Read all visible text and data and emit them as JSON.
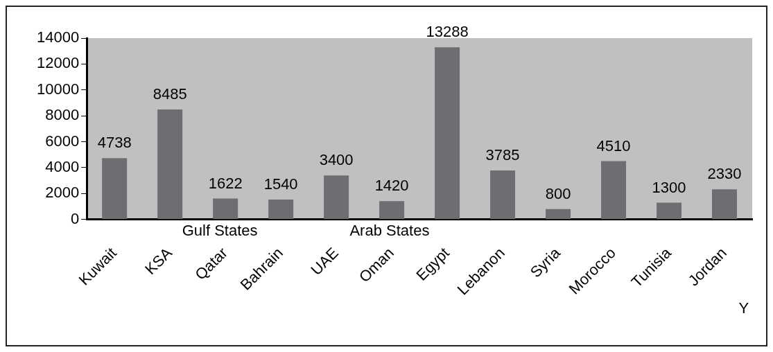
{
  "chart_data": {
    "type": "bar",
    "categories": [
      "Kuwait",
      "KSA",
      "Qatar",
      "Bahrain",
      "UAE",
      "Oman",
      "Egypt",
      "Lebanon",
      "Syria",
      "Morocco",
      "Tunisia",
      "Jordan"
    ],
    "values": [
      4738,
      8485,
      1622,
      1540,
      3400,
      1420,
      13288,
      3785,
      800,
      4510,
      1300,
      2330
    ],
    "color": "#6d6e72",
    "ylim": [
      0,
      14000
    ],
    "yticks": [
      0,
      2000,
      4000,
      6000,
      8000,
      10000,
      12000,
      14000
    ],
    "data_labels": true,
    "grid": false,
    "legend": false,
    "annotations": [
      "Gulf States",
      "Arab States",
      "Y"
    ]
  }
}
